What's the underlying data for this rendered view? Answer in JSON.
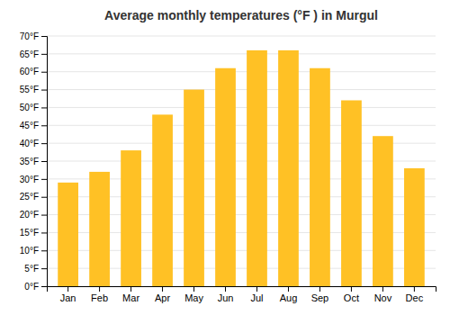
{
  "chart_data": {
    "type": "bar",
    "title": "Average monthly temperatures (°F ) in Murgul",
    "categories": [
      "Jan",
      "Feb",
      "Mar",
      "Apr",
      "May",
      "Jun",
      "Jul",
      "Aug",
      "Sep",
      "Oct",
      "Nov",
      "Dec"
    ],
    "values": [
      29,
      32,
      38,
      48,
      55,
      61,
      66,
      66,
      61,
      52,
      42,
      33
    ],
    "color": "#FFC125",
    "ylim": [
      0,
      70
    ],
    "yticks": [
      {
        "value": 0,
        "label": "0°F"
      },
      {
        "value": 5,
        "label": "5°F"
      },
      {
        "value": 10,
        "label": "10°F"
      },
      {
        "value": 15,
        "label": "15°F"
      },
      {
        "value": 20,
        "label": "20°F"
      },
      {
        "value": 25,
        "label": "25°F"
      },
      {
        "value": 30,
        "label": "30°F"
      },
      {
        "value": 35,
        "label": "35°F"
      },
      {
        "value": 40,
        "label": "40°F"
      },
      {
        "value": 45,
        "label": "45°F"
      },
      {
        "value": 50,
        "label": "50°F"
      },
      {
        "value": 55,
        "label": "55°F"
      },
      {
        "value": 60,
        "label": "60°F"
      },
      {
        "value": 65,
        "label": "65°F"
      },
      {
        "value": 70,
        "label": "70°F"
      }
    ],
    "grid": true
  }
}
